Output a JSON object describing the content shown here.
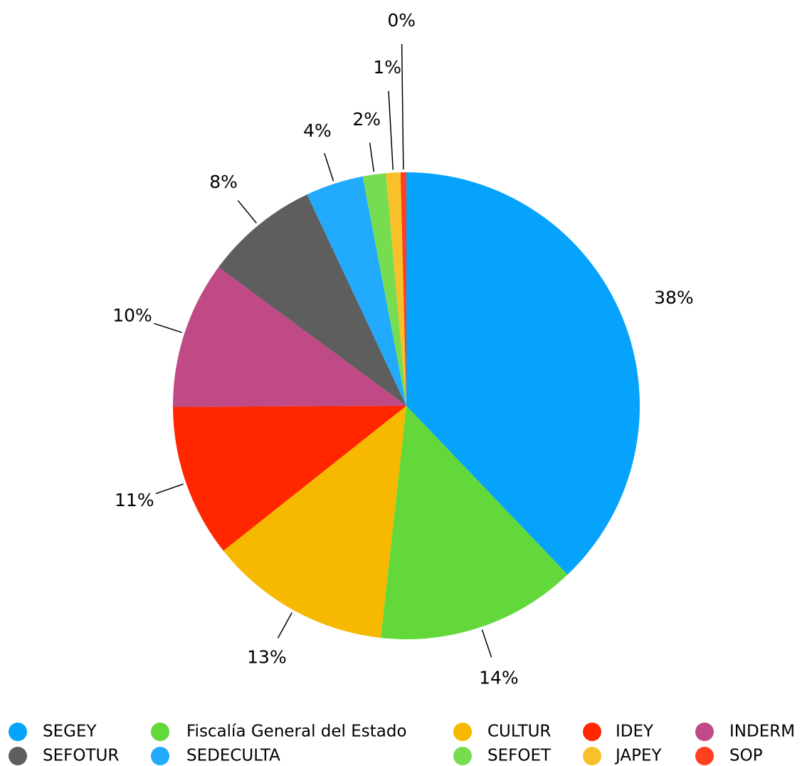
{
  "chart_data": {
    "type": "pie",
    "categories": [
      "SEGEY",
      "Fiscalía General del Estado",
      "CULTUR",
      "IDEY",
      "INDERM",
      "SEFOTUR",
      "SEDECULTA",
      "SEFOET",
      "JAPEY",
      "SOP"
    ],
    "values": [
      37.9,
      13.9,
      12.6,
      10.6,
      10.2,
      7.9,
      4,
      1.6,
      1,
      0.4
    ],
    "value_labels": [
      "38%",
      "14%",
      "13%",
      "11%",
      "10%",
      "8%",
      "4%",
      "2%",
      "1%",
      "0%"
    ],
    "colors": [
      "#05a3fb",
      "#62d83a",
      "#f6b900",
      "#ff2600",
      "#c04a85",
      "#5e5e5e",
      "#22aafc",
      "#76dc50",
      "#f8c12a",
      "#ff4020"
    ]
  }
}
